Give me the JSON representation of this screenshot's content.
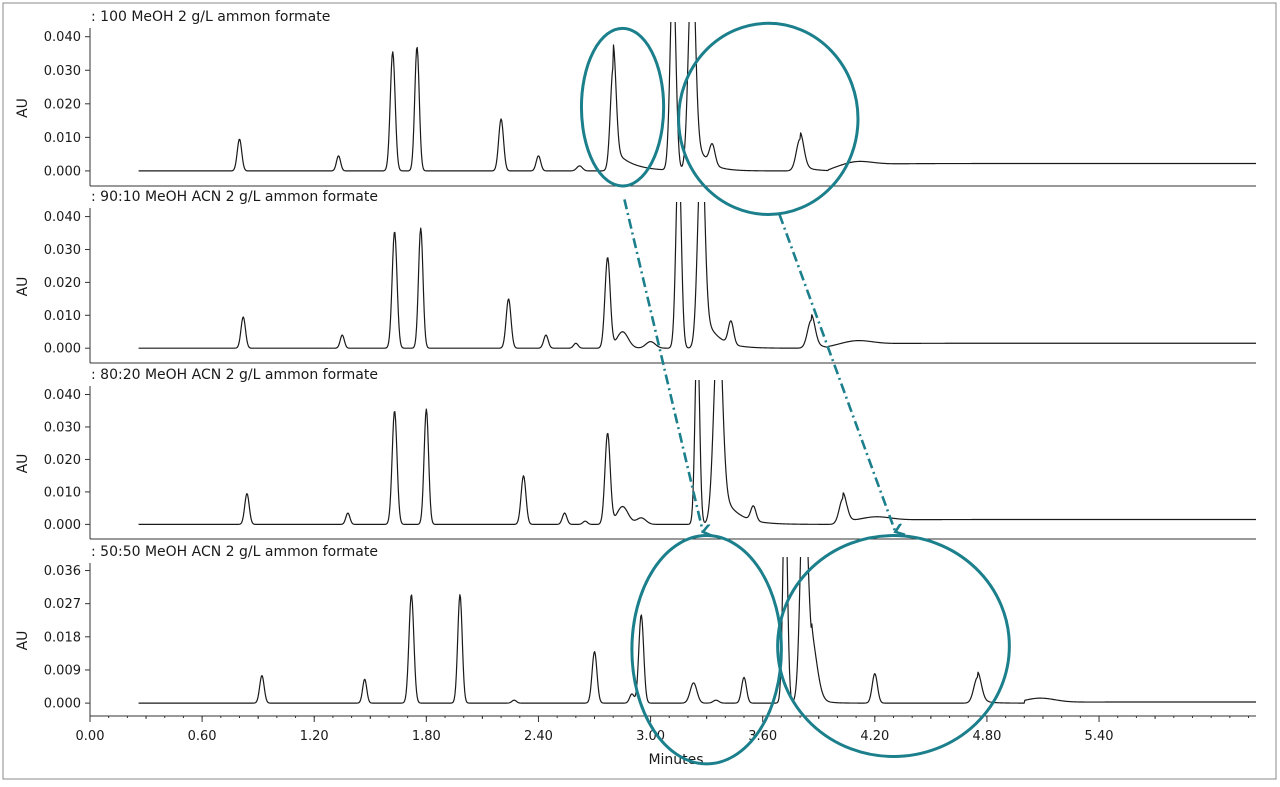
{
  "accent_color": "#1b7f8c",
  "trace_color": "#1a1a1a",
  "chart_data": {
    "type": "line",
    "xlabel": "Minutes",
    "x_ticks": [
      "0.00",
      "0.60",
      "1.20",
      "1.80",
      "2.40",
      "3.00",
      "3.60",
      "4.20",
      "4.80",
      "5.40"
    ],
    "xlim": [
      0.0,
      6.24
    ],
    "grid": false,
    "panels": [
      {
        "title": ": 100 MeOH 2 g/L ammon formate",
        "ylabel": "AU",
        "y_ticks": [
          "0.000",
          "0.010",
          "0.020",
          "0.030",
          "0.040"
        ],
        "ylim": [
          -0.0045,
          0.042
        ],
        "baseline": 0.0,
        "baseline_end": 0.0022,
        "drift_start": 3.95,
        "bump_at": 4.1,
        "peaks": [
          {
            "t": 0.8,
            "h": 0.0095,
            "w": 0.012
          },
          {
            "t": 1.33,
            "h": 0.0045,
            "w": 0.011
          },
          {
            "t": 1.62,
            "h": 0.0355,
            "w": 0.013
          },
          {
            "t": 1.75,
            "h": 0.037,
            "w": 0.012
          },
          {
            "t": 2.2,
            "h": 0.0155,
            "w": 0.013
          },
          {
            "t": 2.4,
            "h": 0.0045,
            "w": 0.012
          },
          {
            "t": 2.62,
            "h": 0.0015,
            "w": 0.015
          },
          {
            "t": 2.8,
            "h": 0.031,
            "w": 0.015,
            "tail": 0.09
          },
          {
            "t": 3.12,
            "h": 0.06,
            "w": 0.015
          },
          {
            "t": 3.22,
            "h": 0.06,
            "w": 0.018,
            "tail": 0.06
          },
          {
            "t": 3.33,
            "h": 0.006,
            "w": 0.015
          },
          {
            "t": 3.8,
            "h": 0.0095,
            "w": 0.02,
            "tail": 0.05
          }
        ]
      },
      {
        "title": ": 90:10 MeOH ACN 2 g/L ammon formate",
        "ylabel": "AU",
        "y_ticks": [
          "0.000",
          "0.010",
          "0.020",
          "0.030",
          "0.040"
        ],
        "ylim": [
          -0.0045,
          0.042
        ],
        "baseline": 0.0,
        "baseline_end": 0.0015,
        "drift_start": 3.95,
        "bump_at": 4.1,
        "peaks": [
          {
            "t": 0.82,
            "h": 0.0095,
            "w": 0.012
          },
          {
            "t": 1.35,
            "h": 0.004,
            "w": 0.011
          },
          {
            "t": 1.63,
            "h": 0.0355,
            "w": 0.013
          },
          {
            "t": 1.77,
            "h": 0.0365,
            "w": 0.012
          },
          {
            "t": 2.24,
            "h": 0.015,
            "w": 0.013
          },
          {
            "t": 2.44,
            "h": 0.004,
            "w": 0.012
          },
          {
            "t": 2.6,
            "h": 0.0015,
            "w": 0.012
          },
          {
            "t": 2.77,
            "h": 0.0275,
            "w": 0.014
          },
          {
            "t": 2.85,
            "h": 0.005,
            "w": 0.03
          },
          {
            "t": 3.0,
            "h": 0.002,
            "w": 0.025
          },
          {
            "t": 3.15,
            "h": 0.06,
            "w": 0.014
          },
          {
            "t": 3.27,
            "h": 0.06,
            "w": 0.018,
            "tail": 0.07
          },
          {
            "t": 3.43,
            "h": 0.007,
            "w": 0.014
          },
          {
            "t": 3.86,
            "h": 0.0085,
            "w": 0.02,
            "tail": 0.05
          }
        ]
      },
      {
        "title": ": 80:20 MeOH ACN 2 g/L ammon formate",
        "ylabel": "AU",
        "y_ticks": [
          "0.000",
          "0.010",
          "0.020",
          "0.030",
          "0.040"
        ],
        "ylim": [
          -0.0045,
          0.042
        ],
        "baseline": 0.0,
        "baseline_end": 0.0015,
        "drift_start": 4.05,
        "bump_at": 4.2,
        "peaks": [
          {
            "t": 0.84,
            "h": 0.0095,
            "w": 0.012
          },
          {
            "t": 1.38,
            "h": 0.0035,
            "w": 0.011
          },
          {
            "t": 1.63,
            "h": 0.035,
            "w": 0.013
          },
          {
            "t": 1.8,
            "h": 0.0355,
            "w": 0.012
          },
          {
            "t": 2.32,
            "h": 0.015,
            "w": 0.013
          },
          {
            "t": 2.54,
            "h": 0.0035,
            "w": 0.012
          },
          {
            "t": 2.65,
            "h": 0.001,
            "w": 0.012
          },
          {
            "t": 2.77,
            "h": 0.028,
            "w": 0.014
          },
          {
            "t": 2.85,
            "h": 0.0055,
            "w": 0.03
          },
          {
            "t": 2.95,
            "h": 0.002,
            "w": 0.025
          },
          {
            "t": 3.25,
            "h": 0.06,
            "w": 0.012
          },
          {
            "t": 3.36,
            "h": 0.06,
            "w": 0.022,
            "tail": 0.08
          },
          {
            "t": 3.55,
            "h": 0.0045,
            "w": 0.014
          },
          {
            "t": 4.03,
            "h": 0.008,
            "w": 0.02,
            "tail": 0.05
          }
        ]
      },
      {
        "title": ": 50:50 MeOH ACN 2 g/L ammon formate",
        "ylabel": "AU",
        "y_ticks": [
          "0.000",
          "0.009",
          "0.018",
          "0.027",
          "0.036"
        ],
        "ylim": [
          -0.0035,
          0.0375
        ],
        "baseline": 0.0,
        "baseline_end": 0.0003,
        "drift_start": 5.0,
        "bump_at": 5.08,
        "peaks": [
          {
            "t": 0.92,
            "h": 0.0075,
            "w": 0.012
          },
          {
            "t": 1.47,
            "h": 0.0065,
            "w": 0.011
          },
          {
            "t": 1.72,
            "h": 0.0295,
            "w": 0.013
          },
          {
            "t": 1.98,
            "h": 0.0295,
            "w": 0.012
          },
          {
            "t": 2.27,
            "h": 0.0008,
            "w": 0.012
          },
          {
            "t": 2.7,
            "h": 0.014,
            "w": 0.013
          },
          {
            "t": 2.9,
            "h": 0.0025,
            "w": 0.012
          },
          {
            "t": 2.95,
            "h": 0.024,
            "w": 0.013
          },
          {
            "t": 3.23,
            "h": 0.0055,
            "w": 0.018
          },
          {
            "t": 3.35,
            "h": 0.0008,
            "w": 0.015
          },
          {
            "t": 3.5,
            "h": 0.007,
            "w": 0.013
          },
          {
            "t": 3.72,
            "h": 0.06,
            "w": 0.012
          },
          {
            "t": 3.82,
            "h": 0.06,
            "w": 0.018
          },
          {
            "t": 3.86,
            "h": 0.015,
            "w": 0.03,
            "tail": 0.04
          },
          {
            "t": 4.2,
            "h": 0.008,
            "w": 0.014
          },
          {
            "t": 4.75,
            "h": 0.007,
            "w": 0.02,
            "tail": 0.04
          }
        ]
      }
    ],
    "annotations": {
      "ellipses": [
        {
          "panel": 0,
          "cx_t": 2.85,
          "cy_v": 0.019,
          "rx_t": 0.22,
          "ry_v": 0.0235
        },
        {
          "panel": 0,
          "cx_t": 3.63,
          "cy_v": 0.0155,
          "rx_t": 0.48,
          "ry_v": 0.0285
        },
        {
          "panel": 3,
          "cx_t": 3.3,
          "cy_v": 0.0145,
          "rx_t": 0.4,
          "ry_v": 0.031
        },
        {
          "panel": 3,
          "cx_t": 4.3,
          "cy_v": 0.0155,
          "rx_t": 0.62,
          "ry_v": 0.03
        }
      ],
      "arrows": [
        {
          "from_panel": 0,
          "from_t": 2.86,
          "from_v": -0.0085,
          "to_panel": 3,
          "to_t": 3.28,
          "to_v": 0.0465
        },
        {
          "from_panel": 0,
          "from_t": 3.69,
          "from_v": -0.013,
          "to_panel": 3,
          "to_t": 4.31,
          "to_v": 0.0465
        }
      ]
    }
  }
}
